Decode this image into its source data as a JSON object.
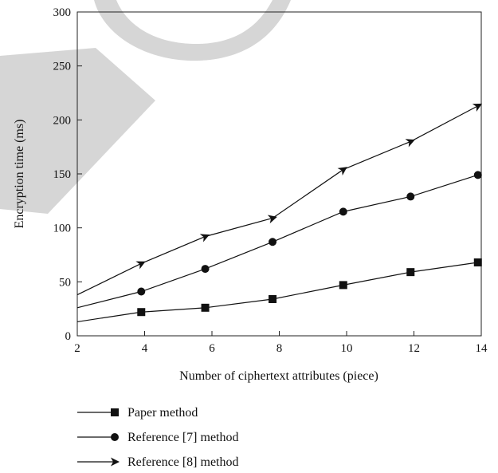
{
  "chart_data": {
    "type": "line",
    "title": "",
    "xlabel": "Number of ciphertext attributes (piece)",
    "ylabel": "Encryption time (ms)",
    "xlim": [
      2,
      14
    ],
    "ylim": [
      0,
      300
    ],
    "xticks": [
      "2",
      "4",
      "6",
      "8",
      "10",
      "12",
      "14"
    ],
    "yticks": [
      "0",
      "50",
      "100",
      "150",
      "200",
      "250",
      "300"
    ],
    "grid": false,
    "legend_position": "bottom-left, below plot",
    "series": [
      {
        "name": "Paper method",
        "marker": "square",
        "points": [
          [
            2,
            13
          ],
          [
            3.9,
            22
          ],
          [
            5.8,
            26
          ],
          [
            7.8,
            34
          ],
          [
            9.9,
            47
          ],
          [
            11.9,
            59
          ],
          [
            13.9,
            68
          ]
        ]
      },
      {
        "name": "Reference [7] method",
        "marker": "circle",
        "points": [
          [
            2,
            26
          ],
          [
            3.9,
            41
          ],
          [
            5.8,
            62
          ],
          [
            7.8,
            87
          ],
          [
            9.9,
            115
          ],
          [
            11.9,
            129
          ],
          [
            13.9,
            149
          ]
        ]
      },
      {
        "name": "Reference [8] method",
        "marker": "arrow",
        "points": [
          [
            2,
            38
          ],
          [
            3.9,
            67
          ],
          [
            5.8,
            92
          ],
          [
            7.8,
            109
          ],
          [
            9.9,
            154
          ],
          [
            11.9,
            180
          ],
          [
            13.9,
            213
          ]
        ]
      }
    ]
  }
}
